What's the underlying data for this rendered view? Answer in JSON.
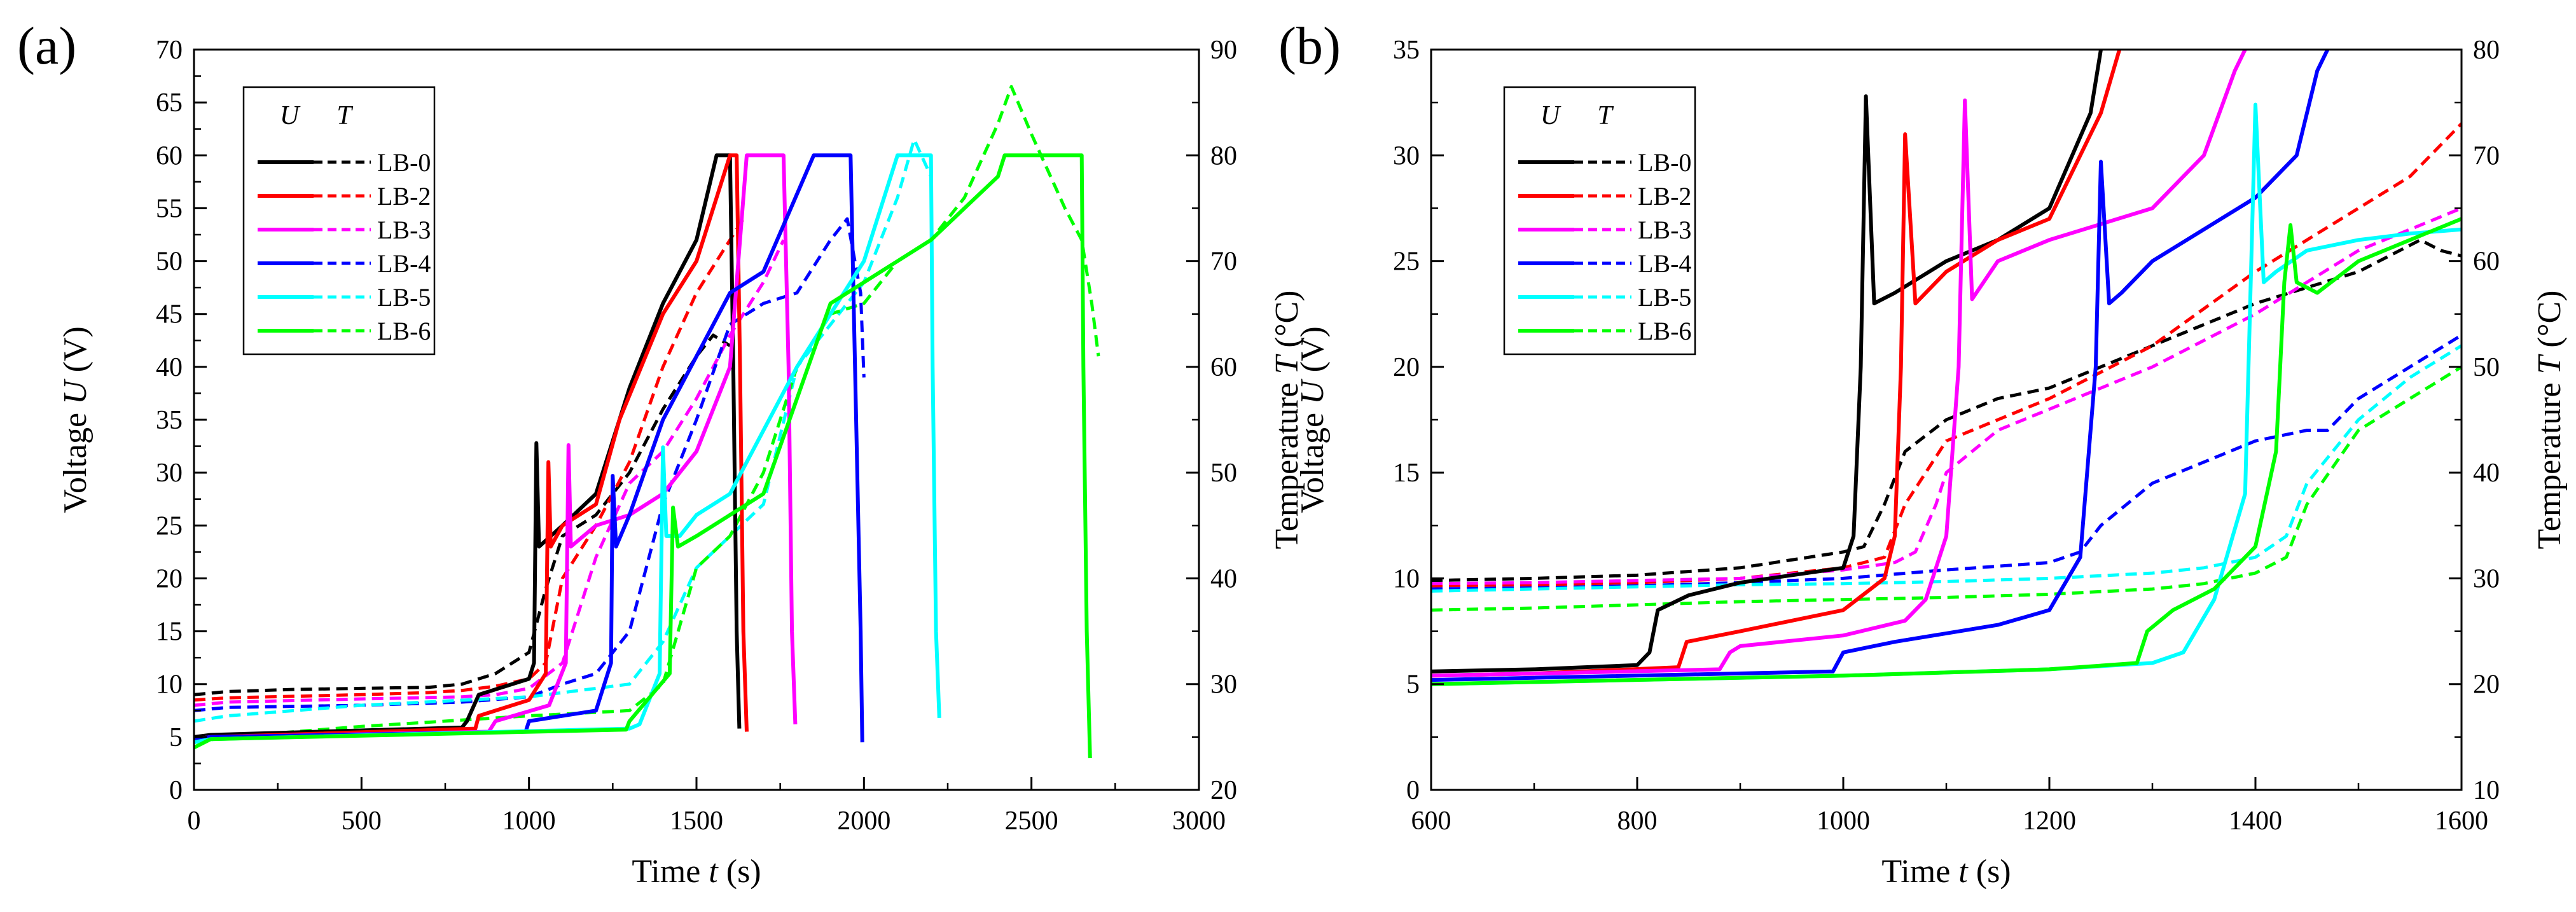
{
  "colors": {
    "LB-0": "#000000",
    "LB-2": "#ff0000",
    "LB-3": "#ff00ff",
    "LB-4": "#0000ff",
    "LB-5": "#00ffff",
    "LB-6": "#00ff00"
  },
  "legend": {
    "header_u": "U",
    "header_t": "T",
    "entries": [
      "LB-0",
      "LB-2",
      "LB-3",
      "LB-4",
      "LB-5",
      "LB-6"
    ]
  },
  "chart_data": [
    {
      "panel": "(a)",
      "type": "line",
      "xlabel_main": "Time ",
      "xlabel_var": "t",
      "xlabel_unit": " (s)",
      "ylabel_main": "Voltage ",
      "ylabel_var": "U",
      "ylabel_unit": " (V)",
      "y2label_main": "Temperature ",
      "y2label_var": "T",
      "y2label_unit": " (°C)",
      "xlim": [
        0,
        3000
      ],
      "ylim": [
        0,
        70
      ],
      "y2lim": [
        20,
        90
      ],
      "xticks": [
        "0",
        "500",
        "1000",
        "1500",
        "2000",
        "2500",
        "3000"
      ],
      "yticks": [
        "0",
        "5",
        "10",
        "15",
        "20",
        "25",
        "30",
        "35",
        "40",
        "45",
        "50",
        "55",
        "60",
        "65",
        "70"
      ],
      "y2ticks": [
        "20",
        "30",
        "40",
        "50",
        "60",
        "70",
        "80",
        "90"
      ],
      "voltage_series": [
        {
          "name": "LB-0",
          "x": [
            0,
            50,
            800,
            815,
            850,
            1000,
            1015,
            1022,
            1030,
            1100,
            1200,
            1300,
            1400,
            1500,
            1560,
            1600,
            1610,
            1620,
            1628
          ],
          "y": [
            5.0,
            5.2,
            5.9,
            6.5,
            9.0,
            10.5,
            12.0,
            32.8,
            23.0,
            25.0,
            28.0,
            38.0,
            46.0,
            52.0,
            60.0,
            60.0,
            40.0,
            15.0,
            5.8
          ]
        },
        {
          "name": "LB-2",
          "x": [
            0,
            50,
            840,
            850,
            1000,
            1050,
            1058,
            1065,
            1100,
            1200,
            1270,
            1400,
            1500,
            1600,
            1620,
            1630,
            1640,
            1650
          ],
          "y": [
            4.8,
            5.0,
            5.8,
            7.0,
            8.5,
            11.0,
            31.0,
            23.0,
            25.0,
            27.0,
            35.0,
            45.0,
            50.0,
            60.0,
            60.0,
            40.0,
            15.0,
            5.5
          ]
        },
        {
          "name": "LB-3",
          "x": [
            0,
            50,
            880,
            900,
            1060,
            1110,
            1118,
            1125,
            1200,
            1300,
            1400,
            1500,
            1600,
            1650,
            1760,
            1775,
            1785,
            1795
          ],
          "y": [
            4.8,
            5.0,
            5.5,
            6.5,
            8.0,
            12.0,
            32.6,
            23.0,
            25.0,
            26.0,
            28.0,
            32.0,
            40.0,
            60.0,
            60.0,
            40.0,
            15.0,
            6.2
          ]
        },
        {
          "name": "LB-4",
          "x": [
            0,
            50,
            990,
            1000,
            1200,
            1245,
            1250,
            1260,
            1300,
            1400,
            1600,
            1700,
            1850,
            1960,
            1970,
            1980,
            1990,
            1995
          ],
          "y": [
            4.8,
            5.0,
            5.5,
            6.5,
            7.5,
            12.0,
            29.7,
            23.0,
            26.0,
            35.0,
            47.0,
            49.0,
            60.0,
            60.0,
            45.0,
            30.0,
            15.0,
            4.5
          ]
        },
        {
          "name": "LB-5",
          "x": [
            0,
            50,
            1300,
            1330,
            1390,
            1400,
            1410,
            1450,
            1500,
            1600,
            1800,
            2000,
            2100,
            2200,
            2205,
            2215,
            2225
          ],
          "y": [
            4.5,
            4.8,
            5.8,
            6.2,
            11.0,
            32.4,
            24.0,
            24.0,
            26.0,
            28.0,
            40.0,
            50.0,
            60.0,
            60.0,
            40.0,
            15.0,
            6.8
          ]
        },
        {
          "name": "LB-6",
          "x": [
            0,
            50,
            1290,
            1300,
            1420,
            1430,
            1445,
            1500,
            1600,
            1700,
            1900,
            2100,
            2200,
            2300,
            2400,
            2420,
            2650,
            2655,
            2665,
            2675
          ],
          "y": [
            4.0,
            4.8,
            5.7,
            6.5,
            11.0,
            26.7,
            23.0,
            24.0,
            26.0,
            28.0,
            46.0,
            50.0,
            52.0,
            55.0,
            58.0,
            60.0,
            60.0,
            40.0,
            15.0,
            3.0
          ]
        }
      ],
      "temperature_series": [
        {
          "name": "LB-0",
          "x": [
            0,
            100,
            300,
            500,
            700,
            800,
            900,
            1000,
            1050,
            1100,
            1200,
            1300,
            1400,
            1500,
            1550,
            1600
          ],
          "y": [
            29.0,
            29.3,
            29.5,
            29.6,
            29.7,
            30.0,
            31.0,
            33.0,
            39.0,
            44.0,
            46.0,
            50.0,
            56.0,
            61.0,
            63.0,
            62.0
          ]
        },
        {
          "name": "LB-2",
          "x": [
            0,
            100,
            500,
            700,
            800,
            900,
            1000,
            1050,
            1100,
            1200,
            1300,
            1400,
            1500,
            1600,
            1640
          ],
          "y": [
            28.5,
            28.7,
            29.0,
            29.2,
            29.4,
            29.8,
            30.5,
            32.0,
            40.0,
            45.0,
            51.0,
            60.0,
            67.0,
            72.0,
            74.0
          ]
        },
        {
          "name": "LB-3",
          "x": [
            0,
            100,
            500,
            800,
            900,
            1000,
            1100,
            1200,
            1300,
            1400,
            1500,
            1600,
            1700,
            1760
          ],
          "y": [
            28.0,
            28.3,
            28.6,
            28.8,
            29.0,
            29.6,
            32.0,
            42.0,
            49.0,
            52.0,
            57.0,
            63.0,
            68.0,
            72.0
          ]
        },
        {
          "name": "LB-4",
          "x": [
            0,
            100,
            500,
            800,
            1000,
            1100,
            1200,
            1300,
            1400,
            1500,
            1600,
            1700,
            1800,
            1900,
            1950,
            1990,
            2000
          ],
          "y": [
            27.5,
            27.8,
            28.0,
            28.3,
            28.8,
            30.0,
            31.0,
            35.0,
            47.0,
            55.0,
            64.0,
            66.0,
            67.0,
            72.0,
            74.0,
            67.0,
            59.0
          ]
        },
        {
          "name": "LB-5",
          "x": [
            0,
            100,
            500,
            1000,
            1300,
            1400,
            1500,
            1600,
            1700,
            1800,
            1900,
            2000,
            2100,
            2150,
            2200
          ],
          "y": [
            26.5,
            27.0,
            28.0,
            28.8,
            30.0,
            34.0,
            41.0,
            44.0,
            47.0,
            60.0,
            64.0,
            68.0,
            76.0,
            81.5,
            78.0
          ]
        },
        {
          "name": "LB-6",
          "x": [
            0,
            100,
            500,
            1000,
            1300,
            1400,
            1500,
            1600,
            1700,
            1800,
            1900,
            2000,
            2100,
            2200,
            2300,
            2400,
            2440,
            2500,
            2600,
            2650,
            2680,
            2700
          ],
          "y": [
            24.5,
            25.0,
            26.0,
            27.0,
            27.5,
            30.0,
            41.0,
            44.0,
            50.0,
            60.0,
            65.0,
            66.0,
            70.0,
            72.0,
            76.0,
            83.0,
            86.5,
            82.0,
            75.0,
            72.0,
            66.0,
            61.0
          ]
        }
      ]
    },
    {
      "panel": "(b)",
      "type": "line",
      "xlabel_main": "Time ",
      "xlabel_var": "t",
      "xlabel_unit": " (s)",
      "ylabel_main": "Voltage ",
      "ylabel_var": "U",
      "ylabel_unit": " (V)",
      "y2label_main": "Temperature ",
      "y2label_var": "T",
      "y2label_unit": " (°C)",
      "xlim": [
        600,
        1600
      ],
      "ylim": [
        0,
        35
      ],
      "y2lim": [
        10,
        80
      ],
      "xticks": [
        "600",
        "800",
        "1000",
        "1200",
        "1400",
        "1600"
      ],
      "yticks": [
        "0",
        "5",
        "10",
        "15",
        "20",
        "25",
        "30",
        "35"
      ],
      "y2ticks": [
        "10",
        "20",
        "30",
        "40",
        "50",
        "60",
        "70",
        "80"
      ],
      "voltage_series": [
        {
          "name": "LB-0",
          "x": [
            600,
            700,
            800,
            812,
            820,
            850,
            900,
            1000,
            1010,
            1017,
            1022,
            1030,
            1050,
            1100,
            1150,
            1200,
            1240,
            1250
          ],
          "y": [
            5.6,
            5.7,
            5.9,
            6.5,
            8.5,
            9.2,
            9.8,
            10.5,
            12.0,
            20.0,
            32.8,
            23.0,
            23.5,
            25.0,
            26.0,
            27.5,
            32.0,
            35.0
          ]
        },
        {
          "name": "LB-2",
          "x": [
            600,
            700,
            840,
            848,
            900,
            1000,
            1040,
            1050,
            1056,
            1060,
            1070,
            1100,
            1150,
            1200,
            1250,
            1268
          ],
          "y": [
            5.4,
            5.5,
            5.8,
            7.0,
            7.5,
            8.5,
            10.0,
            12.0,
            20.0,
            31.0,
            23.0,
            24.5,
            26.0,
            27.0,
            32.0,
            35.0
          ]
        },
        {
          "name": "LB-3",
          "x": [
            600,
            700,
            880,
            890,
            900,
            1000,
            1060,
            1080,
            1100,
            1112,
            1118,
            1125,
            1150,
            1200,
            1300,
            1350,
            1380,
            1390
          ],
          "y": [
            5.4,
            5.5,
            5.7,
            6.5,
            6.8,
            7.3,
            8.0,
            9.0,
            12.0,
            20.0,
            32.6,
            23.2,
            25.0,
            26.0,
            27.5,
            30.0,
            34.0,
            35.0
          ]
        },
        {
          "name": "LB-4",
          "x": [
            600,
            700,
            990,
            1000,
            1050,
            1150,
            1200,
            1230,
            1245,
            1250,
            1258,
            1270,
            1300,
            1350,
            1400,
            1440,
            1460,
            1470
          ],
          "y": [
            5.2,
            5.3,
            5.6,
            6.5,
            7.0,
            7.8,
            8.5,
            11.0,
            20.0,
            29.7,
            23.0,
            23.5,
            25.0,
            26.5,
            28.0,
            30.0,
            34.0,
            35.0
          ]
        },
        {
          "name": "LB-5",
          "x": [
            600,
            700,
            1000,
            1200,
            1300,
            1330,
            1360,
            1390,
            1396,
            1400,
            1408,
            1420,
            1450,
            1500,
            1550,
            1600
          ],
          "y": [
            5.0,
            5.1,
            5.4,
            5.7,
            6.0,
            6.5,
            9.0,
            14.0,
            25.0,
            32.4,
            24.0,
            24.5,
            25.5,
            26.0,
            26.3,
            26.5
          ]
        },
        {
          "name": "LB-6",
          "x": [
            600,
            700,
            1000,
            1200,
            1285,
            1295,
            1320,
            1360,
            1400,
            1420,
            1428,
            1434,
            1440,
            1460,
            1500,
            1550,
            1600
          ],
          "y": [
            5.0,
            5.1,
            5.4,
            5.7,
            6.0,
            7.5,
            8.5,
            9.5,
            11.5,
            16.0,
            24.0,
            26.7,
            24.0,
            23.5,
            25.0,
            26.0,
            27.0
          ]
        }
      ],
      "temperature_series": [
        {
          "name": "LB-0",
          "x": [
            600,
            700,
            800,
            900,
            1000,
            1020,
            1040,
            1060,
            1100,
            1150,
            1200,
            1300,
            1400,
            1500,
            1560,
            1580,
            1600
          ],
          "y": [
            29.8,
            30.0,
            30.3,
            31.0,
            32.5,
            33.0,
            37.0,
            42.0,
            45.0,
            47.0,
            48.0,
            52.0,
            56.0,
            59.0,
            62.0,
            61.0,
            60.5
          ]
        },
        {
          "name": "LB-2",
          "x": [
            600,
            700,
            800,
            900,
            1000,
            1040,
            1060,
            1100,
            1200,
            1300,
            1400,
            1500,
            1550,
            1600
          ],
          "y": [
            29.3,
            29.4,
            29.6,
            30.0,
            31.0,
            32.0,
            37.0,
            43.0,
            47.0,
            52.0,
            59.0,
            65.0,
            68.0,
            73.0
          ]
        },
        {
          "name": "LB-3",
          "x": [
            600,
            700,
            800,
            900,
            1000,
            1050,
            1070,
            1090,
            1100,
            1150,
            1200,
            1300,
            1400,
            1500,
            1550,
            1600
          ],
          "y": [
            29.5,
            29.6,
            29.8,
            30.0,
            30.8,
            31.5,
            32.5,
            37.0,
            40.0,
            44.0,
            46.0,
            50.0,
            55.0,
            61.0,
            63.0,
            65.0
          ]
        },
        {
          "name": "LB-4",
          "x": [
            600,
            700,
            800,
            900,
            1000,
            1100,
            1200,
            1230,
            1250,
            1300,
            1400,
            1450,
            1470,
            1500,
            1550,
            1600
          ],
          "y": [
            29.0,
            29.1,
            29.3,
            29.6,
            30.0,
            30.8,
            31.5,
            32.5,
            35.0,
            39.0,
            43.0,
            44.0,
            44.0,
            47.0,
            50.0,
            53.0
          ]
        },
        {
          "name": "LB-5",
          "x": [
            600,
            700,
            800,
            900,
            1000,
            1100,
            1200,
            1300,
            1350,
            1400,
            1430,
            1450,
            1500,
            1550,
            1600
          ],
          "y": [
            28.8,
            29.0,
            29.2,
            29.4,
            29.5,
            29.7,
            30.0,
            30.5,
            31.0,
            32.0,
            34.0,
            39.0,
            45.0,
            49.0,
            52.0
          ]
        },
        {
          "name": "LB-6",
          "x": [
            600,
            700,
            800,
            900,
            1000,
            1100,
            1200,
            1300,
            1350,
            1400,
            1430,
            1450,
            1500,
            1550,
            1600
          ],
          "y": [
            27.0,
            27.2,
            27.5,
            27.8,
            28.0,
            28.2,
            28.5,
            29.0,
            29.5,
            30.5,
            32.0,
            37.0,
            44.0,
            47.0,
            50.0
          ]
        }
      ]
    }
  ]
}
